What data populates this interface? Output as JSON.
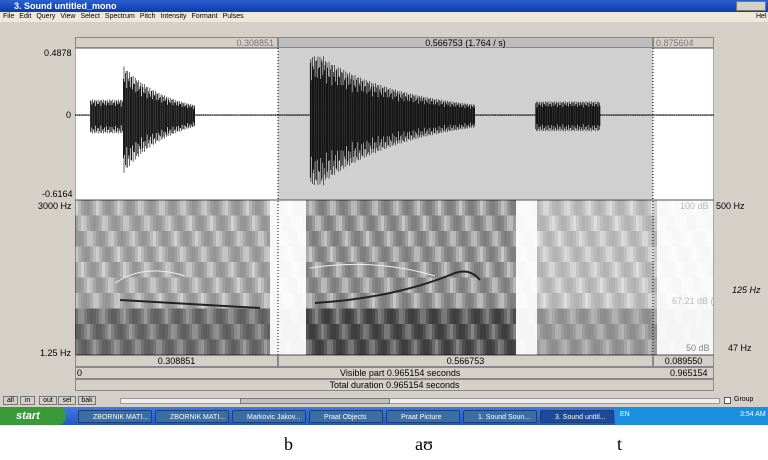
{
  "window": {
    "title": "3. Sound untitled_mono",
    "menu": [
      "File",
      "Edit",
      "Query",
      "View",
      "Select",
      "Spectrum",
      "Pitch",
      "Intensity",
      "Formant",
      "Pulses"
    ],
    "help": "Hel"
  },
  "editor": {
    "cursor_bar": [
      "0.308851",
      "0.566753 (1.764 / s)",
      "0.875604"
    ],
    "amplitude_labels": [
      "0.4878",
      "0",
      "-0.6164"
    ],
    "spectrogram_left": [
      "3000 Hz",
      "1.25 Hz"
    ],
    "spectrogram_right": [
      "500 Hz",
      "125 Hz",
      "47 Hz"
    ],
    "spectrogram_inner": [
      "100 dB",
      "67.21 dB (",
      "50 dB"
    ],
    "selection_row": [
      "0.308851",
      "0.566753",
      "0.089550"
    ],
    "visible_row": [
      "0",
      "Visible part 0.965154 seconds",
      "0.965154"
    ],
    "total_duration": "Total duration 0.965154 seconds",
    "buttons": [
      "all",
      "in",
      "out",
      "sel",
      "bak"
    ],
    "group": "Group"
  },
  "taskbar": {
    "start": "start",
    "items": [
      "ZBORNIK MATI...",
      "ZBORNIK MATI...",
      "Markovic Jakov...",
      "Praat Objects",
      "Praat Picture",
      "1. Sound Soun...",
      "3. Sound untitl..."
    ],
    "language": "EN",
    "clock": "3:54 AM"
  },
  "transcription": [
    "b",
    "aʊ",
    "t"
  ]
}
